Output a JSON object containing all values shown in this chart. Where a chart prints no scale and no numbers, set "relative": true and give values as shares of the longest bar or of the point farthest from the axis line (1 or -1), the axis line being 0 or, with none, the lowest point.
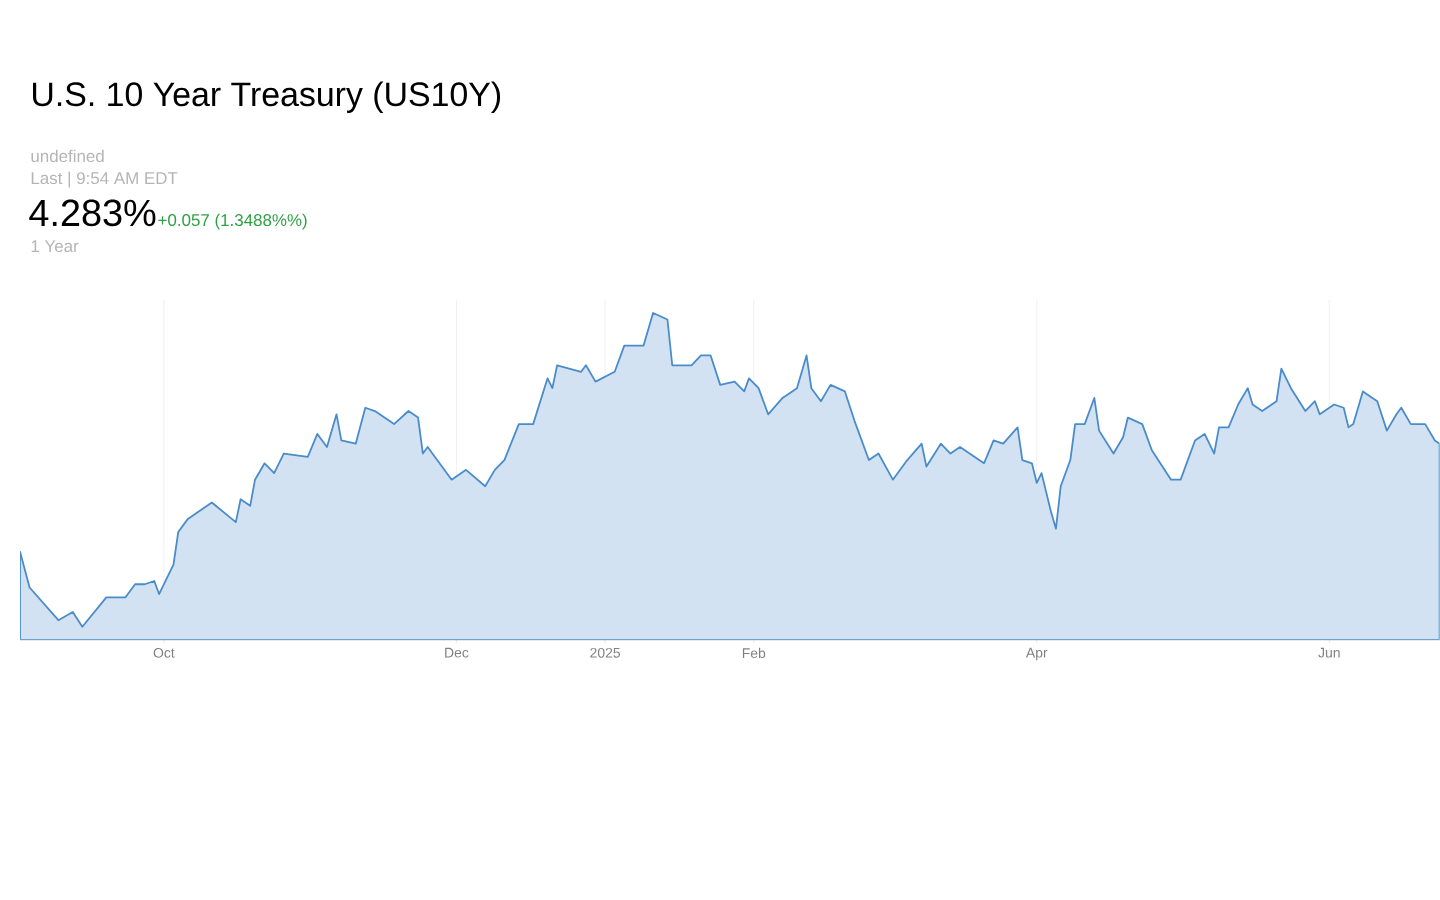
{
  "chart_data": {
    "type": "area",
    "title": "U.S. 10 Year Treasury (US10Y)",
    "annotations": [
      "undefined",
      "Last | 9:54 AM EDT",
      "4.283%",
      "+0.057 (1.3488%%)",
      "1 Year"
    ],
    "relative": true,
    "grid": "x",
    "color": "#4a8cc9",
    "xlim": [
      "2024-09-01",
      "2025-06-24"
    ],
    "xticks": [
      {
        "value": "2024-10-01",
        "label": "Oct"
      },
      {
        "value": "2024-12-01",
        "label": "Dec"
      },
      {
        "value": "2025-01-01",
        "label": "2025"
      },
      {
        "value": "2025-02-01",
        "label": "Feb"
      },
      {
        "value": "2025-04-01",
        "label": "Apr"
      },
      {
        "value": "2025-06-01",
        "label": "Jun"
      }
    ],
    "x": [
      "2024-09-01",
      "2024-09-03",
      "2024-09-09",
      "2024-09-12",
      "2024-09-14",
      "2024-09-19",
      "2024-09-23",
      "2024-09-25",
      "2024-09-27",
      "2024-09-29",
      "2024-09-30",
      "2024-10-03",
      "2024-10-04",
      "2024-10-06",
      "2024-10-11",
      "2024-10-16",
      "2024-10-17",
      "2024-10-19",
      "2024-10-20",
      "2024-10-22",
      "2024-10-24",
      "2024-10-26",
      "2024-10-31",
      "2024-11-02",
      "2024-11-04",
      "2024-11-06",
      "2024-11-07",
      "2024-11-10",
      "2024-11-12",
      "2024-11-14",
      "2024-11-18",
      "2024-11-21",
      "2024-11-23",
      "2024-11-24",
      "2024-11-25",
      "2024-11-27",
      "2024-11-30",
      "2024-12-03",
      "2024-12-07",
      "2024-12-09",
      "2024-12-11",
      "2024-12-14",
      "2024-12-17",
      "2024-12-20",
      "2024-12-21",
      "2024-12-22",
      "2024-12-27",
      "2024-12-28",
      "2024-12-30",
      "2025-01-03",
      "2025-01-05",
      "2025-01-09",
      "2025-01-11",
      "2025-01-14",
      "2025-01-15",
      "2025-01-19",
      "2025-01-21",
      "2025-01-23",
      "2025-01-25",
      "2025-01-28",
      "2025-01-30",
      "2025-01-31",
      "2025-02-02",
      "2025-02-04",
      "2025-02-07",
      "2025-02-10",
      "2025-02-12",
      "2025-02-13",
      "2025-02-15",
      "2025-02-17",
      "2025-02-20",
      "2025-02-22",
      "2025-02-25",
      "2025-02-27",
      "2025-03-02",
      "2025-03-05",
      "2025-03-08",
      "2025-03-09",
      "2025-03-12",
      "2025-03-14",
      "2025-03-16",
      "2025-03-20",
      "2025-03-21",
      "2025-03-23",
      "2025-03-25",
      "2025-03-28",
      "2025-03-29",
      "2025-03-31",
      "2025-04-01",
      "2025-04-02",
      "2025-04-04",
      "2025-04-05",
      "2025-04-06",
      "2025-04-08",
      "2025-04-09",
      "2025-04-11",
      "2025-04-13",
      "2025-04-14",
      "2025-04-17",
      "2025-04-19",
      "2025-04-20",
      "2025-04-23",
      "2025-04-25",
      "2025-04-29",
      "2025-05-01",
      "2025-05-04",
      "2025-05-06",
      "2025-05-08",
      "2025-05-09",
      "2025-05-11",
      "2025-05-13",
      "2025-05-15",
      "2025-05-16",
      "2025-05-18",
      "2025-05-21",
      "2025-05-22",
      "2025-05-24",
      "2025-05-27",
      "2025-05-29",
      "2025-05-30",
      "2025-06-02",
      "2025-06-04",
      "2025-06-05",
      "2025-06-06",
      "2025-06-08",
      "2025-06-11",
      "2025-06-13",
      "2025-06-15",
      "2025-06-16",
      "2025-06-18",
      "2025-06-21",
      "2025-06-23",
      "2025-06-24"
    ],
    "values": [
      0.27,
      0.16,
      0.06,
      0.085,
      0.04,
      0.13,
      0.13,
      0.17,
      0.17,
      0.18,
      0.14,
      0.23,
      0.33,
      0.37,
      0.42,
      0.36,
      0.43,
      0.41,
      0.49,
      0.54,
      0.51,
      0.57,
      0.56,
      0.63,
      0.59,
      0.69,
      0.61,
      0.6,
      0.71,
      0.7,
      0.66,
      0.7,
      0.68,
      0.57,
      0.59,
      0.55,
      0.49,
      0.52,
      0.47,
      0.52,
      0.55,
      0.66,
      0.66,
      0.8,
      0.77,
      0.84,
      0.82,
      0.84,
      0.79,
      0.82,
      0.9,
      0.9,
      1.0,
      0.98,
      0.84,
      0.84,
      0.87,
      0.87,
      0.78,
      0.79,
      0.76,
      0.8,
      0.77,
      0.69,
      0.74,
      0.77,
      0.87,
      0.77,
      0.73,
      0.78,
      0.76,
      0.67,
      0.55,
      0.57,
      0.49,
      0.55,
      0.6,
      0.53,
      0.6,
      0.57,
      0.59,
      0.55,
      0.54,
      0.61,
      0.6,
      0.65,
      0.55,
      0.54,
      0.48,
      0.51,
      0.39,
      0.34,
      0.47,
      0.55,
      0.66,
      0.66,
      0.74,
      0.64,
      0.57,
      0.62,
      0.68,
      0.66,
      0.58,
      0.49,
      0.49,
      0.61,
      0.63,
      0.57,
      0.65,
      0.65,
      0.72,
      0.77,
      0.72,
      0.7,
      0.73,
      0.83,
      0.77,
      0.7,
      0.73,
      0.69,
      0.72,
      0.71,
      0.65,
      0.66,
      0.76,
      0.73,
      0.64,
      0.69,
      0.71,
      0.66,
      0.66,
      0.61,
      0.6
    ]
  }
}
